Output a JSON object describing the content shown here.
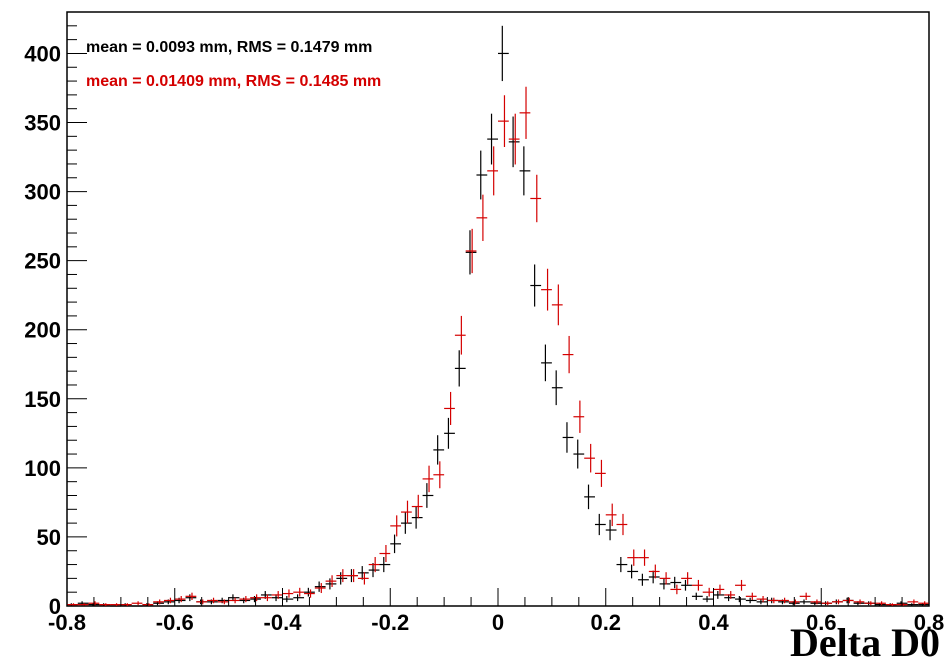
{
  "chart_data": {
    "type": "scatter",
    "title": "",
    "xlabel": "Delta D0",
    "ylabel": "",
    "xlim": [
      -0.8,
      0.8
    ],
    "ylim": [
      0,
      430
    ],
    "grid": false,
    "x_ticks": [
      -0.8,
      -0.6,
      -0.4,
      -0.2,
      0,
      0.2,
      0.4,
      0.6,
      0.8
    ],
    "x_tick_labels": [
      "-0.8",
      "-0.6",
      "-0.4",
      "-0.2",
      "0",
      "0.2",
      "0.4",
      "0.6",
      "0.8"
    ],
    "y_ticks": [
      0,
      50,
      100,
      150,
      200,
      250,
      300,
      350,
      400
    ],
    "y_tick_labels": [
      "0",
      "50",
      "100",
      "150",
      "200",
      "250",
      "300",
      "350",
      "400"
    ],
    "bin_width": 0.02,
    "annotations": [
      {
        "text": "mean = 0.0093 mm, RMS = 0.1479 mm",
        "color": "#000000"
      },
      {
        "text": "mean = 0.01409 mm, RMS = 0.1485 mm",
        "color": "#d40000"
      }
    ],
    "series": [
      {
        "color": "#000000",
        "x": [
          -0.79,
          -0.77,
          -0.75,
          -0.73,
          -0.71,
          -0.69,
          -0.67,
          -0.65,
          -0.63,
          -0.61,
          -0.59,
          -0.57,
          -0.55,
          -0.53,
          -0.51,
          -0.49,
          -0.47,
          -0.45,
          -0.43,
          -0.41,
          -0.39,
          -0.37,
          -0.35,
          -0.33,
          -0.31,
          -0.29,
          -0.27,
          -0.25,
          -0.23,
          -0.21,
          -0.19,
          -0.17,
          -0.15,
          -0.13,
          -0.11,
          -0.09,
          -0.07,
          -0.05,
          -0.03,
          -0.01,
          0.01,
          0.03,
          0.05,
          0.07,
          0.09,
          0.11,
          0.13,
          0.15,
          0.17,
          0.19,
          0.21,
          0.23,
          0.25,
          0.27,
          0.29,
          0.31,
          0.33,
          0.35,
          0.37,
          0.39,
          0.41,
          0.43,
          0.45,
          0.47,
          0.49,
          0.51,
          0.53,
          0.55,
          0.57,
          0.59,
          0.61,
          0.63,
          0.65,
          0.67,
          0.69,
          0.71,
          0.73,
          0.75,
          0.77,
          0.79
        ],
        "y": [
          1,
          2,
          1,
          1,
          0,
          1,
          0,
          1,
          2,
          3,
          4,
          6,
          3,
          3,
          4,
          6,
          4,
          5,
          8,
          6,
          5,
          6,
          10,
          14,
          16,
          20,
          22,
          24,
          26,
          30,
          45,
          60,
          64,
          80,
          113,
          125,
          172,
          256,
          312,
          338,
          400,
          336,
          315,
          232,
          176,
          158,
          122,
          110,
          79,
          59,
          55,
          30,
          25,
          19,
          21,
          16,
          17,
          15,
          7,
          5,
          8,
          6,
          5,
          4,
          3,
          4,
          3,
          2,
          3,
          2,
          2,
          3,
          4,
          2,
          2,
          1,
          1,
          2,
          1,
          1
        ]
      },
      {
        "color": "#d40000",
        "x": [
          -0.79,
          -0.77,
          -0.75,
          -0.73,
          -0.71,
          -0.69,
          -0.67,
          -0.65,
          -0.63,
          -0.61,
          -0.59,
          -0.57,
          -0.55,
          -0.53,
          -0.51,
          -0.49,
          -0.47,
          -0.45,
          -0.43,
          -0.41,
          -0.39,
          -0.37,
          -0.35,
          -0.33,
          -0.31,
          -0.29,
          -0.27,
          -0.25,
          -0.23,
          -0.21,
          -0.19,
          -0.17,
          -0.15,
          -0.13,
          -0.11,
          -0.09,
          -0.07,
          -0.05,
          -0.03,
          -0.01,
          0.01,
          0.03,
          0.05,
          0.07,
          0.09,
          0.11,
          0.13,
          0.15,
          0.17,
          0.19,
          0.21,
          0.23,
          0.25,
          0.27,
          0.29,
          0.31,
          0.33,
          0.35,
          0.37,
          0.39,
          0.41,
          0.43,
          0.45,
          0.47,
          0.49,
          0.51,
          0.53,
          0.55,
          0.57,
          0.59,
          0.61,
          0.63,
          0.65,
          0.67,
          0.69,
          0.71,
          0.73,
          0.75,
          0.77,
          0.79
        ],
        "y": [
          1,
          1,
          2,
          1,
          1,
          1,
          2,
          1,
          3,
          4,
          5,
          7,
          3,
          4,
          3,
          4,
          5,
          6,
          6,
          8,
          9,
          10,
          9,
          13,
          18,
          22,
          22,
          20,
          30,
          38,
          58,
          68,
          72,
          92,
          95,
          143,
          196,
          257,
          281,
          315,
          351,
          338,
          357,
          295,
          229,
          218,
          182,
          137,
          107,
          96,
          66,
          59,
          35,
          35,
          25,
          20,
          12,
          20,
          15,
          10,
          12,
          8,
          15,
          7,
          5,
          4,
          4,
          3,
          7,
          3,
          2,
          3,
          4,
          3,
          2,
          2,
          1,
          1,
          3,
          2
        ]
      }
    ]
  }
}
